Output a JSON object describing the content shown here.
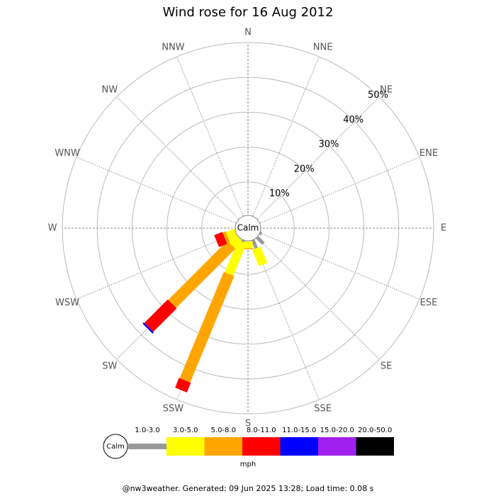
{
  "chart_data": {
    "type": "windrose",
    "title": "Wind rose for 16 Aug 2012",
    "calm_label": "Calm",
    "categories": [
      "N",
      "NNE",
      "NE",
      "ENE",
      "E",
      "ESE",
      "SE",
      "SSE",
      "S",
      "SSW",
      "SW",
      "WSW",
      "W",
      "WNW",
      "NW",
      "NNW"
    ],
    "ylim": [
      0,
      50
    ],
    "yticks": [
      {
        "value": 10,
        "label": "10%"
      },
      {
        "value": 20,
        "label": "20%"
      },
      {
        "value": 30,
        "label": "30%"
      },
      {
        "value": 40,
        "label": "40%"
      },
      {
        "value": 50,
        "label": "50%"
      }
    ],
    "series": [
      {
        "name": "1.0-3.0",
        "color": "#999999",
        "values": [
          0,
          0,
          0,
          0,
          0.5,
          1,
          3,
          3,
          0.5,
          1,
          0.5,
          0,
          0,
          0,
          0,
          0
        ]
      },
      {
        "name": "3.0-5.0",
        "color": "#ffff00",
        "values": [
          0,
          0,
          0,
          0,
          0,
          0,
          0,
          5,
          2,
          10,
          3,
          3,
          0,
          0,
          0,
          0
        ]
      },
      {
        "name": "5.0-8.0",
        "color": "#ffa500",
        "values": [
          0,
          0,
          0,
          0,
          0,
          0,
          0,
          0,
          0.3,
          33,
          24,
          1,
          0,
          0,
          0,
          0
        ]
      },
      {
        "name": "8.0-11.0",
        "color": "#ff0000",
        "values": [
          0,
          0,
          0,
          0,
          0,
          0,
          0,
          0,
          0,
          3,
          9.5,
          2.5,
          0,
          0,
          0,
          0
        ]
      },
      {
        "name": "11.0-15.0",
        "color": "#0000ff",
        "values": [
          0,
          0,
          0,
          0,
          0,
          0,
          0,
          0,
          0,
          0,
          0.5,
          0,
          0,
          0,
          0,
          0
        ]
      },
      {
        "name": "15.0-20.0",
        "color": "#a020f0",
        "values": [
          0,
          0,
          0,
          0,
          0,
          0,
          0,
          0,
          0,
          0,
          0,
          0,
          0,
          0,
          0,
          0
        ]
      },
      {
        "name": "20.0-50.0",
        "color": "#000000",
        "values": [
          0,
          0,
          0,
          0,
          0,
          0,
          0,
          0,
          0,
          0,
          0,
          0,
          0,
          0,
          0,
          0
        ]
      }
    ],
    "unit_label": "mph",
    "footer": "@nw3weather. Generated: 09 Jun 2025 13:28; Load time: 0.08 s"
  }
}
